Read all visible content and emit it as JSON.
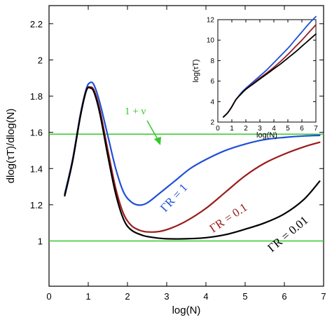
{
  "chart_data": [
    {
      "type": "line",
      "xlabel": "log(N)",
      "ylabel": "dlog(τT)/dlog(N)",
      "xlim": [
        0,
        7
      ],
      "ylim": [
        0.75,
        2.3
      ],
      "xticks": [
        "0",
        "1",
        "2",
        "3",
        "4",
        "5",
        "6",
        "7"
      ],
      "yticks": [
        "1",
        "1.2",
        "1.4",
        "1.6",
        "1.8",
        "2",
        "2.2"
      ],
      "series": [
        {
          "name": "ΓR = 1",
          "color": "#1f4fd6",
          "x": [
            0.4,
            0.6,
            0.8,
            0.95,
            1.05,
            1.15,
            1.3,
            1.5,
            1.7,
            1.9,
            2.1,
            2.3,
            2.5,
            2.8,
            3.2,
            3.6,
            4.0,
            4.5,
            5.0,
            5.5,
            6.0,
            6.5,
            6.9
          ],
          "y": [
            1.26,
            1.45,
            1.7,
            1.84,
            1.875,
            1.86,
            1.76,
            1.58,
            1.4,
            1.27,
            1.215,
            1.198,
            1.21,
            1.26,
            1.33,
            1.4,
            1.45,
            1.5,
            1.535,
            1.56,
            1.572,
            1.58,
            1.583
          ]
        },
        {
          "name": "ΓR = 0.1",
          "color": "#9b1b1b",
          "x": [
            0.4,
            0.6,
            0.8,
            0.95,
            1.05,
            1.15,
            1.3,
            1.5,
            1.7,
            1.9,
            2.1,
            2.3,
            2.5,
            2.8,
            3.1,
            3.5,
            4.0,
            4.5,
            5.0,
            5.5,
            6.0,
            6.5,
            6.9
          ],
          "y": [
            1.25,
            1.44,
            1.69,
            1.83,
            1.85,
            1.83,
            1.72,
            1.5,
            1.29,
            1.15,
            1.085,
            1.06,
            1.05,
            1.052,
            1.07,
            1.11,
            1.18,
            1.27,
            1.36,
            1.43,
            1.48,
            1.52,
            1.545
          ]
        },
        {
          "name": "ΓR = 0.01",
          "color": "#000000",
          "x": [
            0.4,
            0.6,
            0.8,
            0.95,
            1.05,
            1.15,
            1.3,
            1.5,
            1.7,
            1.9,
            2.1,
            2.4,
            2.7,
            3.0,
            3.5,
            4.0,
            4.5,
            5.0,
            5.5,
            6.0,
            6.5,
            6.9
          ],
          "y": [
            1.25,
            1.44,
            1.69,
            1.83,
            1.845,
            1.82,
            1.7,
            1.47,
            1.26,
            1.12,
            1.06,
            1.03,
            1.018,
            1.012,
            1.012,
            1.018,
            1.035,
            1.065,
            1.1,
            1.15,
            1.23,
            1.33
          ]
        }
      ],
      "reference_lines": [
        {
          "y": 1.59,
          "color": "#35c82b",
          "label": "1 + ν"
        },
        {
          "y": 1.0,
          "color": "#35c82b"
        }
      ],
      "curve_labels": [
        "ΓR = 1",
        "ΓR = 0.1",
        "ΓR = 0.01"
      ],
      "annotation": "1 + ν",
      "grid": false
    },
    {
      "type": "line",
      "xlabel": "log(N)",
      "ylabel": "log(τT)",
      "xlim": [
        0,
        7
      ],
      "ylim": [
        2,
        12
      ],
      "xticks": [
        "0",
        "1",
        "2",
        "3",
        "4",
        "5",
        "6",
        "7"
      ],
      "yticks": [
        "2",
        "4",
        "6",
        "8",
        "10",
        "12"
      ],
      "series": [
        {
          "name": "ΓR = 1",
          "color": "#1f4fd6",
          "x": [
            0.4,
            0.7,
            1.0,
            1.3,
            1.7,
            2.0,
            2.5,
            3.0,
            3.5,
            4.0,
            4.5,
            5.0,
            5.5,
            6.0,
            6.5,
            7.0
          ],
          "y": [
            2.5,
            2.9,
            3.5,
            4.2,
            4.9,
            5.3,
            5.9,
            6.5,
            7.1,
            7.8,
            8.5,
            9.2,
            10.0,
            10.8,
            11.6,
            12.3
          ]
        },
        {
          "name": "ΓR = 0.1",
          "color": "#9b1b1b",
          "x": [
            0.4,
            0.7,
            1.0,
            1.3,
            1.7,
            2.0,
            2.5,
            3.0,
            3.5,
            4.0,
            4.5,
            5.0,
            5.5,
            6.0,
            6.5,
            7.0
          ],
          "y": [
            2.5,
            2.9,
            3.5,
            4.2,
            4.8,
            5.2,
            5.75,
            6.3,
            6.8,
            7.35,
            7.95,
            8.6,
            9.3,
            10.0,
            10.75,
            11.5
          ]
        },
        {
          "name": "ΓR = 0.01",
          "color": "#000000",
          "x": [
            0.4,
            0.7,
            1.0,
            1.3,
            1.7,
            2.0,
            2.5,
            3.0,
            3.5,
            4.0,
            4.5,
            5.0,
            5.5,
            6.0,
            6.5,
            7.0
          ],
          "y": [
            2.5,
            2.9,
            3.5,
            4.2,
            4.8,
            5.2,
            5.7,
            6.2,
            6.7,
            7.2,
            7.7,
            8.25,
            8.8,
            9.4,
            10.0,
            10.6
          ]
        }
      ],
      "grid": false
    }
  ]
}
